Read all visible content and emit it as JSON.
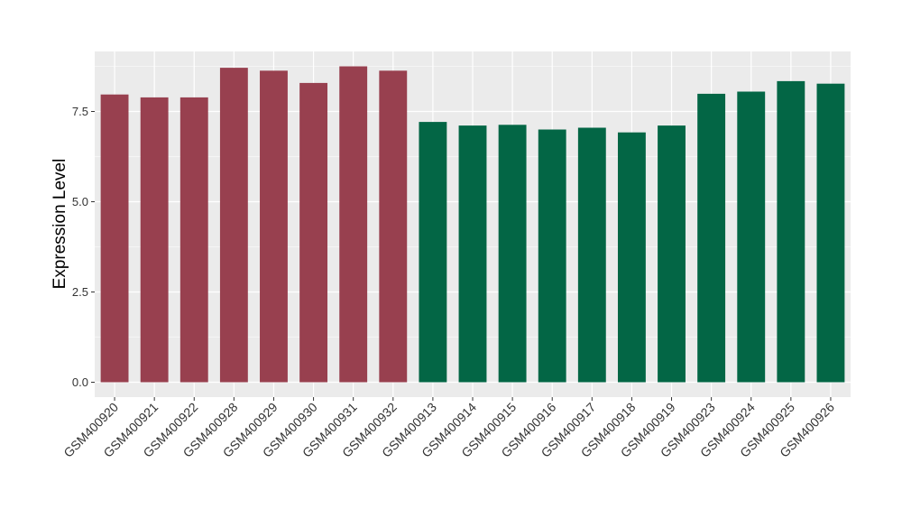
{
  "chart_data": {
    "type": "bar",
    "title": "",
    "xlabel": "",
    "ylabel": "Expression Level",
    "ylim": [
      0,
      9.15
    ],
    "y_ticks": [
      0.0,
      2.5,
      5.0,
      7.5
    ],
    "y_tick_labels": [
      "0.0",
      "2.5",
      "5.0",
      "7.5"
    ],
    "grid": true,
    "legend": "none",
    "categories": [
      "GSM400920",
      "GSM400921",
      "GSM400922",
      "GSM400928",
      "GSM400929",
      "GSM400930",
      "GSM400931",
      "GSM400932",
      "GSM400913",
      "GSM400914",
      "GSM400915",
      "GSM400916",
      "GSM400917",
      "GSM400918",
      "GSM400919",
      "GSM400923",
      "GSM400924",
      "GSM400925",
      "GSM400926"
    ],
    "values": [
      7.97,
      7.89,
      7.89,
      8.71,
      8.63,
      8.29,
      8.75,
      8.63,
      7.21,
      7.11,
      7.13,
      7.0,
      7.05,
      6.92,
      7.11,
      7.99,
      8.05,
      8.34,
      8.27
    ],
    "bar_colors": [
      "#98404f",
      "#98404f",
      "#98404f",
      "#98404f",
      "#98404f",
      "#98404f",
      "#98404f",
      "#98404f",
      "#036645",
      "#036645",
      "#036645",
      "#036645",
      "#036645",
      "#036645",
      "#036645",
      "#036645",
      "#036645",
      "#036645",
      "#036645"
    ],
    "panel_background": "#ebebeb",
    "grid_color": "#ffffff"
  }
}
